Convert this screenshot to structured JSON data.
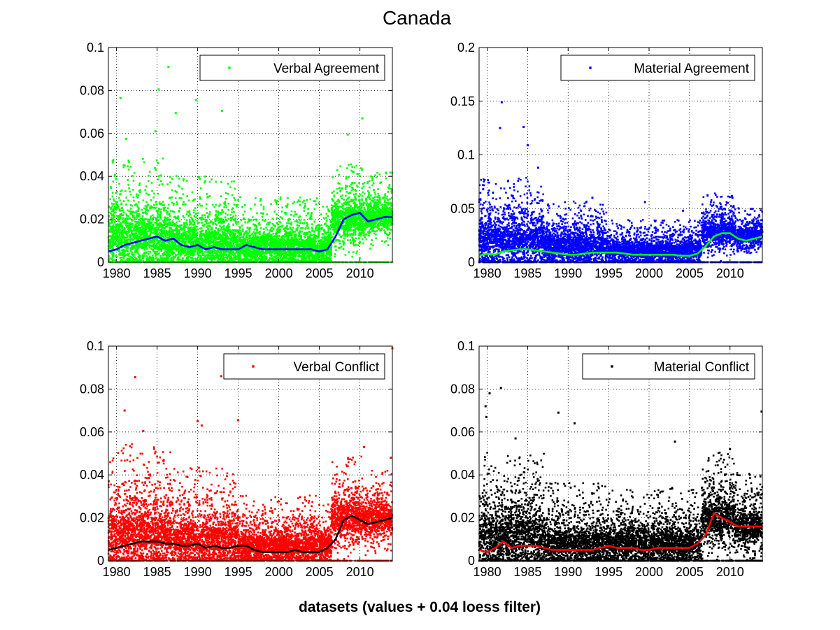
{
  "figure": {
    "title": "Canada",
    "footer": "datasets (values + 0.04 loess filter)"
  },
  "chart_data": [
    {
      "type": "scatter",
      "title": "",
      "xlabel": "",
      "ylabel": "",
      "xlim": [
        1979,
        2014
      ],
      "ylim": [
        0,
        0.1
      ],
      "xticks": [
        "1980",
        "1985",
        "1990",
        "1995",
        "2000",
        "2005",
        "2010"
      ],
      "yticks": [
        "0",
        "0.02",
        "0.04",
        "0.06",
        "0.08",
        "0.1"
      ],
      "grid": true,
      "legend_location": "top-right",
      "point_color": "#00ff00",
      "line_color": "#0000ff",
      "series": [
        {
          "name": "Verbal Agreement",
          "kind": "daily values (scatter)",
          "bands": [
            {
              "from": 1979,
              "to": 1986,
              "center": 0.012,
              "spread": 0.014
            },
            {
              "from": 1986,
              "to": 1995,
              "center": 0.009,
              "spread": 0.012
            },
            {
              "from": 1995,
              "to": 2006.5,
              "center": 0.007,
              "spread": 0.009
            },
            {
              "from": 2006.5,
              "to": 2010.5,
              "center": 0.02,
              "spread": 0.01
            },
            {
              "from": 2010.5,
              "to": 2014,
              "center": 0.021,
              "spread": 0.008
            }
          ],
          "outliers": [
            [
              1980.5,
              0.0765
            ],
            [
              1985.2,
              0.0805
            ],
            [
              1986.4,
              0.091
            ],
            [
              1987.3,
              0.0695
            ],
            [
              1989.8,
              0.0755
            ],
            [
              1993.0,
              0.0705
            ],
            [
              2008.5,
              0.0595
            ],
            [
              2010.3,
              0.067
            ],
            [
              1984.8,
              0.061
            ],
            [
              1981.2,
              0.0575
            ]
          ]
        },
        {
          "name": "",
          "kind": "loess trend (line)",
          "x": [
            1979,
            1980,
            1981,
            1982,
            1983,
            1984,
            1985,
            1986,
            1987,
            1988,
            1989,
            1990,
            1991,
            1992,
            1993,
            1994,
            1995,
            1996,
            1997,
            1998,
            1999,
            2000,
            2001,
            2002,
            2003,
            2004,
            2005,
            2006,
            2007,
            2008,
            2009,
            2010,
            2011,
            2012,
            2013,
            2014
          ],
          "y": [
            0.005,
            0.006,
            0.008,
            0.009,
            0.01,
            0.011,
            0.012,
            0.01,
            0.011,
            0.008,
            0.007,
            0.008,
            0.006,
            0.007,
            0.006,
            0.006,
            0.006,
            0.008,
            0.007,
            0.006,
            0.006,
            0.006,
            0.006,
            0.006,
            0.006,
            0.006,
            0.005,
            0.006,
            0.012,
            0.02,
            0.022,
            0.023,
            0.019,
            0.02,
            0.021,
            0.021
          ]
        }
      ]
    },
    {
      "type": "scatter",
      "title": "",
      "xlabel": "",
      "ylabel": "",
      "xlim": [
        1979,
        2014
      ],
      "ylim": [
        0,
        0.2
      ],
      "xticks": [
        "1980",
        "1985",
        "1990",
        "1995",
        "2000",
        "2005",
        "2010"
      ],
      "yticks": [
        "0",
        "0.05",
        "0.1",
        "0.15",
        "0.2"
      ],
      "grid": true,
      "legend_location": "top-right",
      "point_color": "#0000ff",
      "line_color": "#00ff00",
      "series": [
        {
          "name": "Material Agreement",
          "kind": "daily values (scatter)",
          "bands": [
            {
              "from": 1979,
              "to": 1987,
              "center": 0.022,
              "spread": 0.022
            },
            {
              "from": 1987,
              "to": 1995,
              "center": 0.015,
              "spread": 0.016
            },
            {
              "from": 1995,
              "to": 2006.5,
              "center": 0.011,
              "spread": 0.011
            },
            {
              "from": 2006.5,
              "to": 2010.5,
              "center": 0.028,
              "spread": 0.014
            },
            {
              "from": 2010.5,
              "to": 2014,
              "center": 0.025,
              "spread": 0.01
            }
          ],
          "outliers": [
            [
              1981.8,
              0.149
            ],
            [
              1981.6,
              0.125
            ],
            [
              1984.5,
              0.126
            ],
            [
              1985.0,
              0.109
            ],
            [
              1986.3,
              0.088
            ],
            [
              1979.5,
              0.068
            ],
            [
              1993.0,
              0.06
            ],
            [
              2010.3,
              0.06
            ],
            [
              2004.2,
              0.048
            ],
            [
              1999.5,
              0.056
            ]
          ]
        },
        {
          "name": "",
          "kind": "loess trend (line)",
          "x": [
            1979,
            1980,
            1981,
            1982,
            1983,
            1984,
            1985,
            1986,
            1987,
            1988,
            1989,
            1990,
            1991,
            1992,
            1993,
            1994,
            1995,
            1996,
            1997,
            1998,
            1999,
            2000,
            2001,
            2002,
            2003,
            2004,
            2005,
            2006,
            2007,
            2008,
            2009,
            2010,
            2011,
            2012,
            2013,
            2014
          ],
          "y": [
            0.006,
            0.008,
            0.007,
            0.01,
            0.011,
            0.012,
            0.012,
            0.011,
            0.01,
            0.009,
            0.008,
            0.007,
            0.007,
            0.008,
            0.009,
            0.009,
            0.009,
            0.009,
            0.008,
            0.007,
            0.007,
            0.007,
            0.007,
            0.007,
            0.007,
            0.006,
            0.006,
            0.008,
            0.015,
            0.024,
            0.027,
            0.027,
            0.022,
            0.02,
            0.022,
            0.024
          ]
        }
      ]
    },
    {
      "type": "scatter",
      "title": "",
      "xlabel": "",
      "ylabel": "",
      "xlim": [
        1979,
        2014
      ],
      "ylim": [
        0,
        0.1
      ],
      "xticks": [
        "1980",
        "1985",
        "1990",
        "1995",
        "2000",
        "2005",
        "2010"
      ],
      "yticks": [
        "0",
        "0.02",
        "0.04",
        "0.06",
        "0.08",
        "0.1"
      ],
      "grid": true,
      "legend_location": "top-right",
      "point_color": "#ff0000",
      "line_color": "#000000",
      "series": [
        {
          "name": "Verbal Conflict",
          "kind": "daily values (scatter)",
          "bands": [
            {
              "from": 1979,
              "to": 1987,
              "center": 0.013,
              "spread": 0.016
            },
            {
              "from": 1987,
              "to": 1995,
              "center": 0.01,
              "spread": 0.013
            },
            {
              "from": 1995,
              "to": 2006.5,
              "center": 0.007,
              "spread": 0.009
            },
            {
              "from": 2006.5,
              "to": 2010.5,
              "center": 0.02,
              "spread": 0.011
            },
            {
              "from": 2010.5,
              "to": 2014,
              "center": 0.019,
              "spread": 0.009
            }
          ],
          "outliers": [
            [
              1982.3,
              0.0855
            ],
            [
              1992.9,
              0.086
            ],
            [
              1983.3,
              0.0605
            ],
            [
              1990.0,
              0.065
            ],
            [
              1990.5,
              0.063
            ],
            [
              1995.0,
              0.0655
            ],
            [
              1981.0,
              0.07
            ],
            [
              2014.0,
              0.099
            ],
            [
              2013.8,
              0.048
            ],
            [
              2010.5,
              0.053
            ]
          ]
        },
        {
          "name": "",
          "kind": "loess trend (line)",
          "x": [
            1979,
            1980,
            1981,
            1982,
            1983,
            1984,
            1985,
            1986,
            1987,
            1988,
            1989,
            1990,
            1991,
            1992,
            1993,
            1994,
            1995,
            1996,
            1997,
            1998,
            1999,
            2000,
            2001,
            2002,
            2003,
            2004,
            2005,
            2006,
            2007,
            2008,
            2009,
            2010,
            2011,
            2012,
            2013,
            2014
          ],
          "y": [
            0.005,
            0.006,
            0.007,
            0.008,
            0.009,
            0.009,
            0.009,
            0.008,
            0.008,
            0.007,
            0.007,
            0.008,
            0.006,
            0.007,
            0.006,
            0.006,
            0.007,
            0.007,
            0.005,
            0.004,
            0.004,
            0.004,
            0.004,
            0.005,
            0.004,
            0.004,
            0.004,
            0.006,
            0.01,
            0.019,
            0.021,
            0.019,
            0.017,
            0.018,
            0.019,
            0.02
          ]
        }
      ]
    },
    {
      "type": "scatter",
      "title": "",
      "xlabel": "",
      "ylabel": "",
      "xlim": [
        1979,
        2014
      ],
      "ylim": [
        0,
        0.1
      ],
      "xticks": [
        "1980",
        "1985",
        "1990",
        "1995",
        "2000",
        "2005",
        "2010"
      ],
      "yticks": [
        "0",
        "0.02",
        "0.04",
        "0.06",
        "0.08",
        "0.1"
      ],
      "grid": true,
      "legend_location": "top-right",
      "point_color": "#000000",
      "line_color": "#ff0000",
      "series": [
        {
          "name": "Material Conflict",
          "kind": "daily values (scatter)",
          "bands": [
            {
              "from": 1979,
              "to": 1987,
              "center": 0.012,
              "spread": 0.015
            },
            {
              "from": 1987,
              "to": 1995,
              "center": 0.008,
              "spread": 0.011
            },
            {
              "from": 1995,
              "to": 2006.5,
              "center": 0.008,
              "spread": 0.01
            },
            {
              "from": 2006.5,
              "to": 2010.5,
              "center": 0.02,
              "spread": 0.012
            },
            {
              "from": 2010.5,
              "to": 2014,
              "center": 0.016,
              "spread": 0.01
            }
          ],
          "outliers": [
            [
              1980.3,
              0.078
            ],
            [
              1981.7,
              0.0805
            ],
            [
              1979.8,
              0.072
            ],
            [
              1979.9,
              0.067
            ],
            [
              1988.8,
              0.069
            ],
            [
              1990.8,
              0.064
            ],
            [
              2003.2,
              0.0555
            ],
            [
              2010.0,
              0.052
            ],
            [
              2013.9,
              0.0695
            ],
            [
              1983.5,
              0.057
            ]
          ]
        },
        {
          "name": "",
          "kind": "loess trend (line)",
          "x": [
            1979,
            1980,
            1981,
            1982,
            1983,
            1984,
            1985,
            1986,
            1987,
            1988,
            1989,
            1990,
            1991,
            1992,
            1993,
            1994,
            1995,
            1996,
            1997,
            1998,
            1999,
            2000,
            2001,
            2002,
            2003,
            2004,
            2005,
            2006,
            2007,
            2008,
            2009,
            2010,
            2011,
            2012,
            2013,
            2014
          ],
          "y": [
            0.005,
            0.004,
            0.006,
            0.009,
            0.006,
            0.007,
            0.007,
            0.007,
            0.006,
            0.005,
            0.005,
            0.005,
            0.005,
            0.005,
            0.005,
            0.006,
            0.007,
            0.006,
            0.006,
            0.006,
            0.005,
            0.005,
            0.006,
            0.006,
            0.006,
            0.006,
            0.006,
            0.008,
            0.012,
            0.022,
            0.02,
            0.018,
            0.016,
            0.016,
            0.016,
            0.016
          ]
        }
      ]
    }
  ]
}
